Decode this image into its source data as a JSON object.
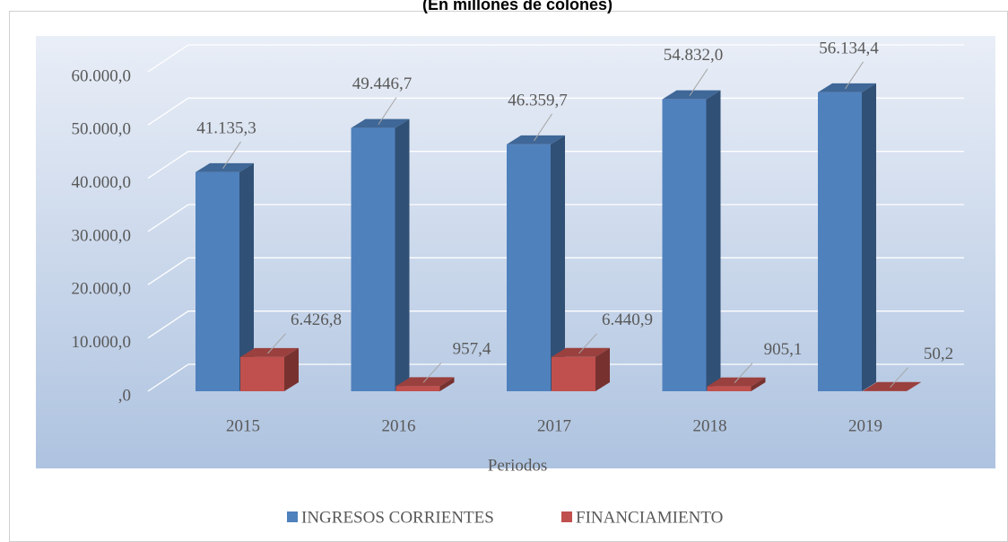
{
  "chart_data": {
    "type": "bar3d",
    "title": "(En millones de colones)",
    "x_label": "Periodos",
    "categories": [
      "2015",
      "2016",
      "2017",
      "2018",
      "2019"
    ],
    "series": [
      {
        "name": "INGRESOS CORRIENTES",
        "color": "#4f81bd",
        "values": [
          41135.3,
          49446.7,
          46359.7,
          54832.0,
          56134.4
        ],
        "value_labels": [
          "41.135,3",
          "49.446,7",
          "46.359,7",
          "54.832,0",
          "56.134,4"
        ]
      },
      {
        "name": "FINANCIAMIENTO",
        "color": "#c0504d",
        "values": [
          6426.8,
          957.4,
          6440.9,
          905.1,
          50.2
        ],
        "value_labels": [
          "6.426,8",
          "957,4",
          "6.440,9",
          "905,1",
          "50,2"
        ]
      }
    ],
    "ylim": [
      0,
      60000
    ],
    "yticks": [
      {
        "value": 0,
        "label": ",0"
      },
      {
        "value": 10000,
        "label": "10.000,0"
      },
      {
        "value": 20000,
        "label": "20.000,0"
      },
      {
        "value": 30000,
        "label": "30.000,0"
      },
      {
        "value": 40000,
        "label": "40.000,0"
      },
      {
        "value": 50000,
        "label": "50.000,0"
      },
      {
        "value": 60000,
        "label": "60.000,0"
      }
    ],
    "grid": true,
    "legend": "bottom"
  }
}
